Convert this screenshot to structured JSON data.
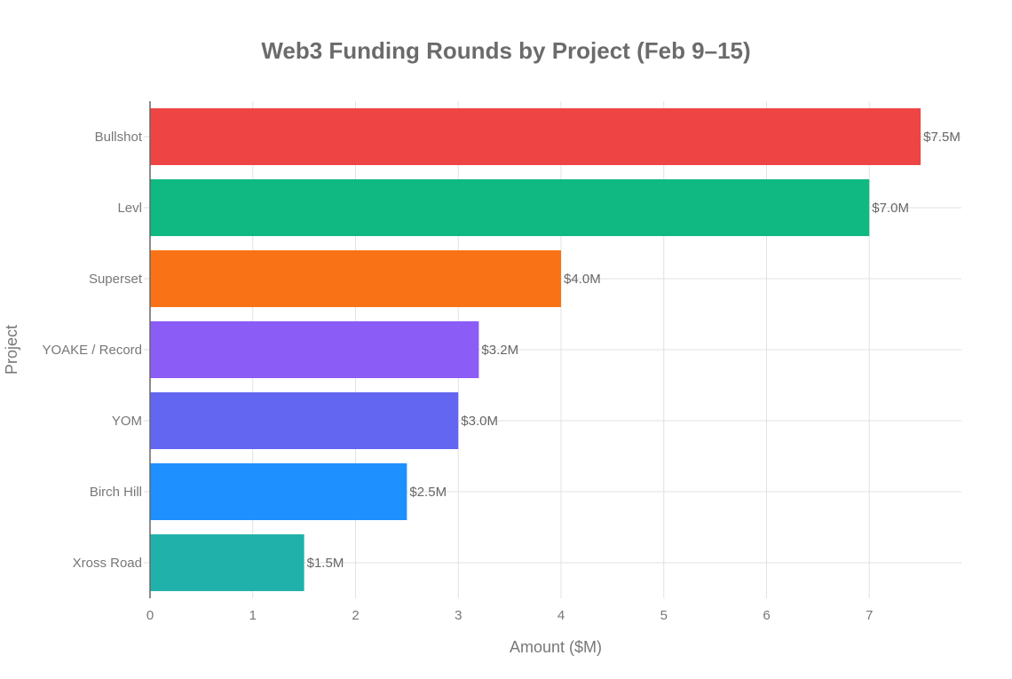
{
  "chart_data": {
    "type": "bar",
    "orientation": "horizontal",
    "title": "Web3 Funding Rounds by Project (Feb 9–15)",
    "xlabel": "Amount ($M)",
    "ylabel": "Project",
    "categories": [
      "Bullshot",
      "Levl",
      "Superset",
      "YOAKE / Record",
      "YOM",
      "Birch Hill",
      "Xross Road"
    ],
    "values": [
      7.5,
      7.0,
      4.0,
      3.2,
      3.0,
      2.5,
      1.5
    ],
    "data_labels": [
      "$7.5M",
      "$7.0M",
      "$4.0M",
      "$3.2M",
      "$3.0M",
      "$2.5M",
      "$1.5M"
    ],
    "colors": [
      "#EF4444",
      "#10B981",
      "#F97316",
      "#8B5CF6",
      "#6366F1",
      "#1E90FF",
      "#20B2AA"
    ],
    "xticks": [
      "0",
      "1",
      "2",
      "3",
      "4",
      "5",
      "6",
      "7"
    ],
    "xlim": [
      0,
      7.9
    ],
    "grid": true,
    "legend": "none"
  }
}
